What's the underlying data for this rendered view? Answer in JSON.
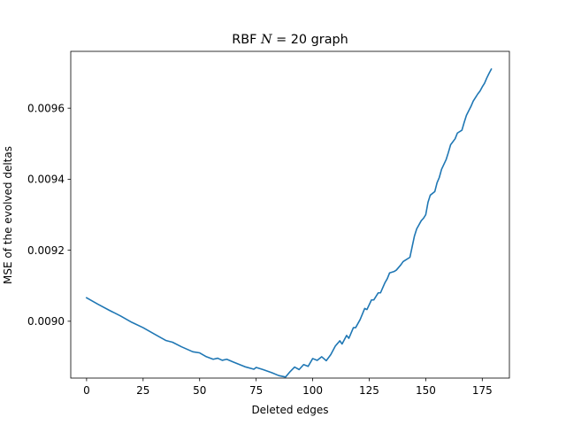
{
  "chart_data": {
    "type": "line",
    "title": "RBF N = 20 graph",
    "title_parts": {
      "prefix": "RBF ",
      "variable": "N",
      "suffix": " = 20 graph"
    },
    "xlabel": "Deleted edges",
    "ylabel": "MSE of the evolved deltas",
    "xlim": [
      -7,
      187
    ],
    "ylim": [
      0.00884,
      0.00976
    ],
    "xticks": [
      0,
      25,
      50,
      75,
      100,
      125,
      150,
      175
    ],
    "xtick_labels": [
      "0",
      "25",
      "50",
      "75",
      "100",
      "125",
      "150",
      "175"
    ],
    "yticks": [
      0.009,
      0.0092,
      0.0094,
      0.0096
    ],
    "ytick_labels": [
      "0.0090",
      "0.0092",
      "0.0094",
      "0.0096"
    ],
    "grid": false,
    "legend": "none",
    "line_color": "#1f77b4",
    "series": [
      {
        "x": [
          0,
          5,
          10,
          15,
          20,
          25,
          30,
          35,
          38,
          42,
          47,
          50,
          53,
          56,
          58,
          60,
          62,
          65,
          70,
          74,
          75,
          78,
          82,
          85,
          88,
          90,
          92,
          94,
          96,
          98,
          100,
          102,
          104,
          106,
          108,
          110,
          112,
          113,
          115,
          116,
          118,
          119,
          121,
          123,
          124,
          126,
          127,
          129,
          130,
          132,
          133,
          134,
          136,
          137,
          139,
          140,
          141,
          143,
          144,
          145,
          146,
          148,
          149,
          150,
          151,
          152,
          154,
          155,
          156,
          157,
          159,
          160,
          161,
          163,
          164,
          166,
          167,
          168,
          170,
          171,
          172,
          173,
          174,
          175,
          176,
          177,
          178,
          179
        ],
        "y": [
          0.009066,
          0.009048,
          0.009031,
          0.009015,
          0.008997,
          0.008982,
          0.008964,
          0.008946,
          0.008941,
          0.008928,
          0.008914,
          0.008911,
          0.0089,
          0.008893,
          0.008896,
          0.00889,
          0.008893,
          0.008885,
          0.008872,
          0.008865,
          0.00887,
          0.008864,
          0.008855,
          0.008847,
          0.008843,
          0.008858,
          0.008871,
          0.008864,
          0.008878,
          0.008873,
          0.008895,
          0.00889,
          0.0089,
          0.008889,
          0.008906,
          0.00893,
          0.008945,
          0.008936,
          0.00896,
          0.008952,
          0.008982,
          0.008982,
          0.009005,
          0.009036,
          0.009033,
          0.00906,
          0.00906,
          0.00908,
          0.00908,
          0.009109,
          0.00912,
          0.009136,
          0.00914,
          0.009144,
          0.009159,
          0.009168,
          0.009172,
          0.00918,
          0.00921,
          0.00924,
          0.00926,
          0.009283,
          0.00929,
          0.0093,
          0.009335,
          0.009355,
          0.009365,
          0.00939,
          0.009405,
          0.009428,
          0.009455,
          0.009475,
          0.009497,
          0.009514,
          0.00953,
          0.009538,
          0.00956,
          0.00958,
          0.009605,
          0.00962,
          0.00963,
          0.00964,
          0.009648,
          0.00966,
          0.00967,
          0.009685,
          0.009698,
          0.00971
        ]
      }
    ]
  }
}
